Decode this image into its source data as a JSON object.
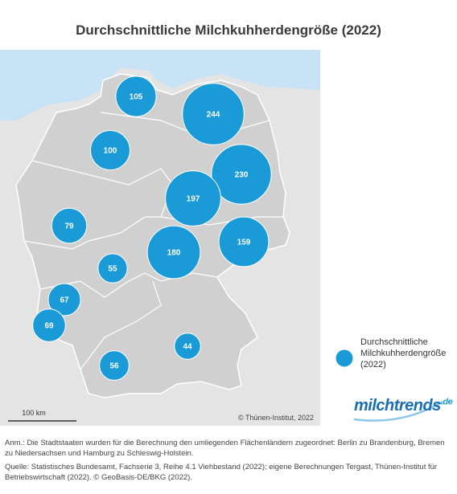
{
  "title": "Durchschnittliche Milchkuhherdengröße (2022)",
  "bubbles": {
    "values": [
      105,
      244,
      100,
      230,
      197,
      79,
      159,
      180,
      55,
      67,
      69,
      44,
      56
    ],
    "color": "#1b9ad8"
  },
  "legend": {
    "label": "Durchschnittliche Milchkuhherdengröße (2022)"
  },
  "scale_bar": "100 km",
  "copyright": "© Thünen-Institut, 2022",
  "logo": {
    "name": "milchtrends",
    "suffix": ".de"
  },
  "notes": [
    "Anm.: Die Stadtstaaten wurden für die Berechnung den umliegenden Flächenländern zugeordnet: Berlin zu Brandenburg, Bremen zu Niedersachsen und Hamburg zu Schleswig-Holstein.",
    "Quelle: Statistisches Bundesamt, Fachserie 3, Reihe 4.1 Viehbestand (2022); eigene Berechnungen Tergast, Thünen-Institut für Betriebswirtschaft (2022). © GeoBasis-DE/BKG (2022)."
  ]
}
